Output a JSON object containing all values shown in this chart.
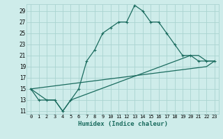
{
  "xlabel": "Humidex (Indice chaleur)",
  "bg_color": "#ceecea",
  "grid_color": "#aad4d0",
  "line_color": "#1a6b5e",
  "xlim": [
    -0.5,
    23.5
  ],
  "ylim": [
    10.5,
    30.2
  ],
  "yticks": [
    11,
    13,
    15,
    17,
    19,
    21,
    23,
    25,
    27,
    29
  ],
  "xticks": [
    0,
    1,
    2,
    3,
    4,
    5,
    6,
    7,
    8,
    9,
    10,
    11,
    12,
    13,
    14,
    15,
    16,
    17,
    18,
    19,
    20,
    21,
    22,
    23
  ],
  "series_main": {
    "x": [
      0,
      1,
      2,
      3,
      4,
      5,
      6,
      7,
      8,
      9,
      10,
      11,
      12,
      13,
      14,
      15,
      16,
      17,
      18,
      19,
      20,
      21,
      22,
      23
    ],
    "y": [
      15,
      13,
      13,
      13,
      11,
      13,
      15,
      20,
      22,
      25,
      26,
      27,
      27,
      30,
      29,
      27,
      27,
      25,
      23,
      21,
      21,
      20,
      20,
      20
    ]
  },
  "series_mid": {
    "x": [
      0,
      2,
      3,
      4,
      5,
      20,
      21,
      22,
      23
    ],
    "y": [
      15,
      13,
      13,
      11,
      13,
      21,
      21,
      20,
      20
    ]
  },
  "series_low": {
    "x": [
      0,
      22,
      23
    ],
    "y": [
      15,
      19,
      20
    ]
  }
}
